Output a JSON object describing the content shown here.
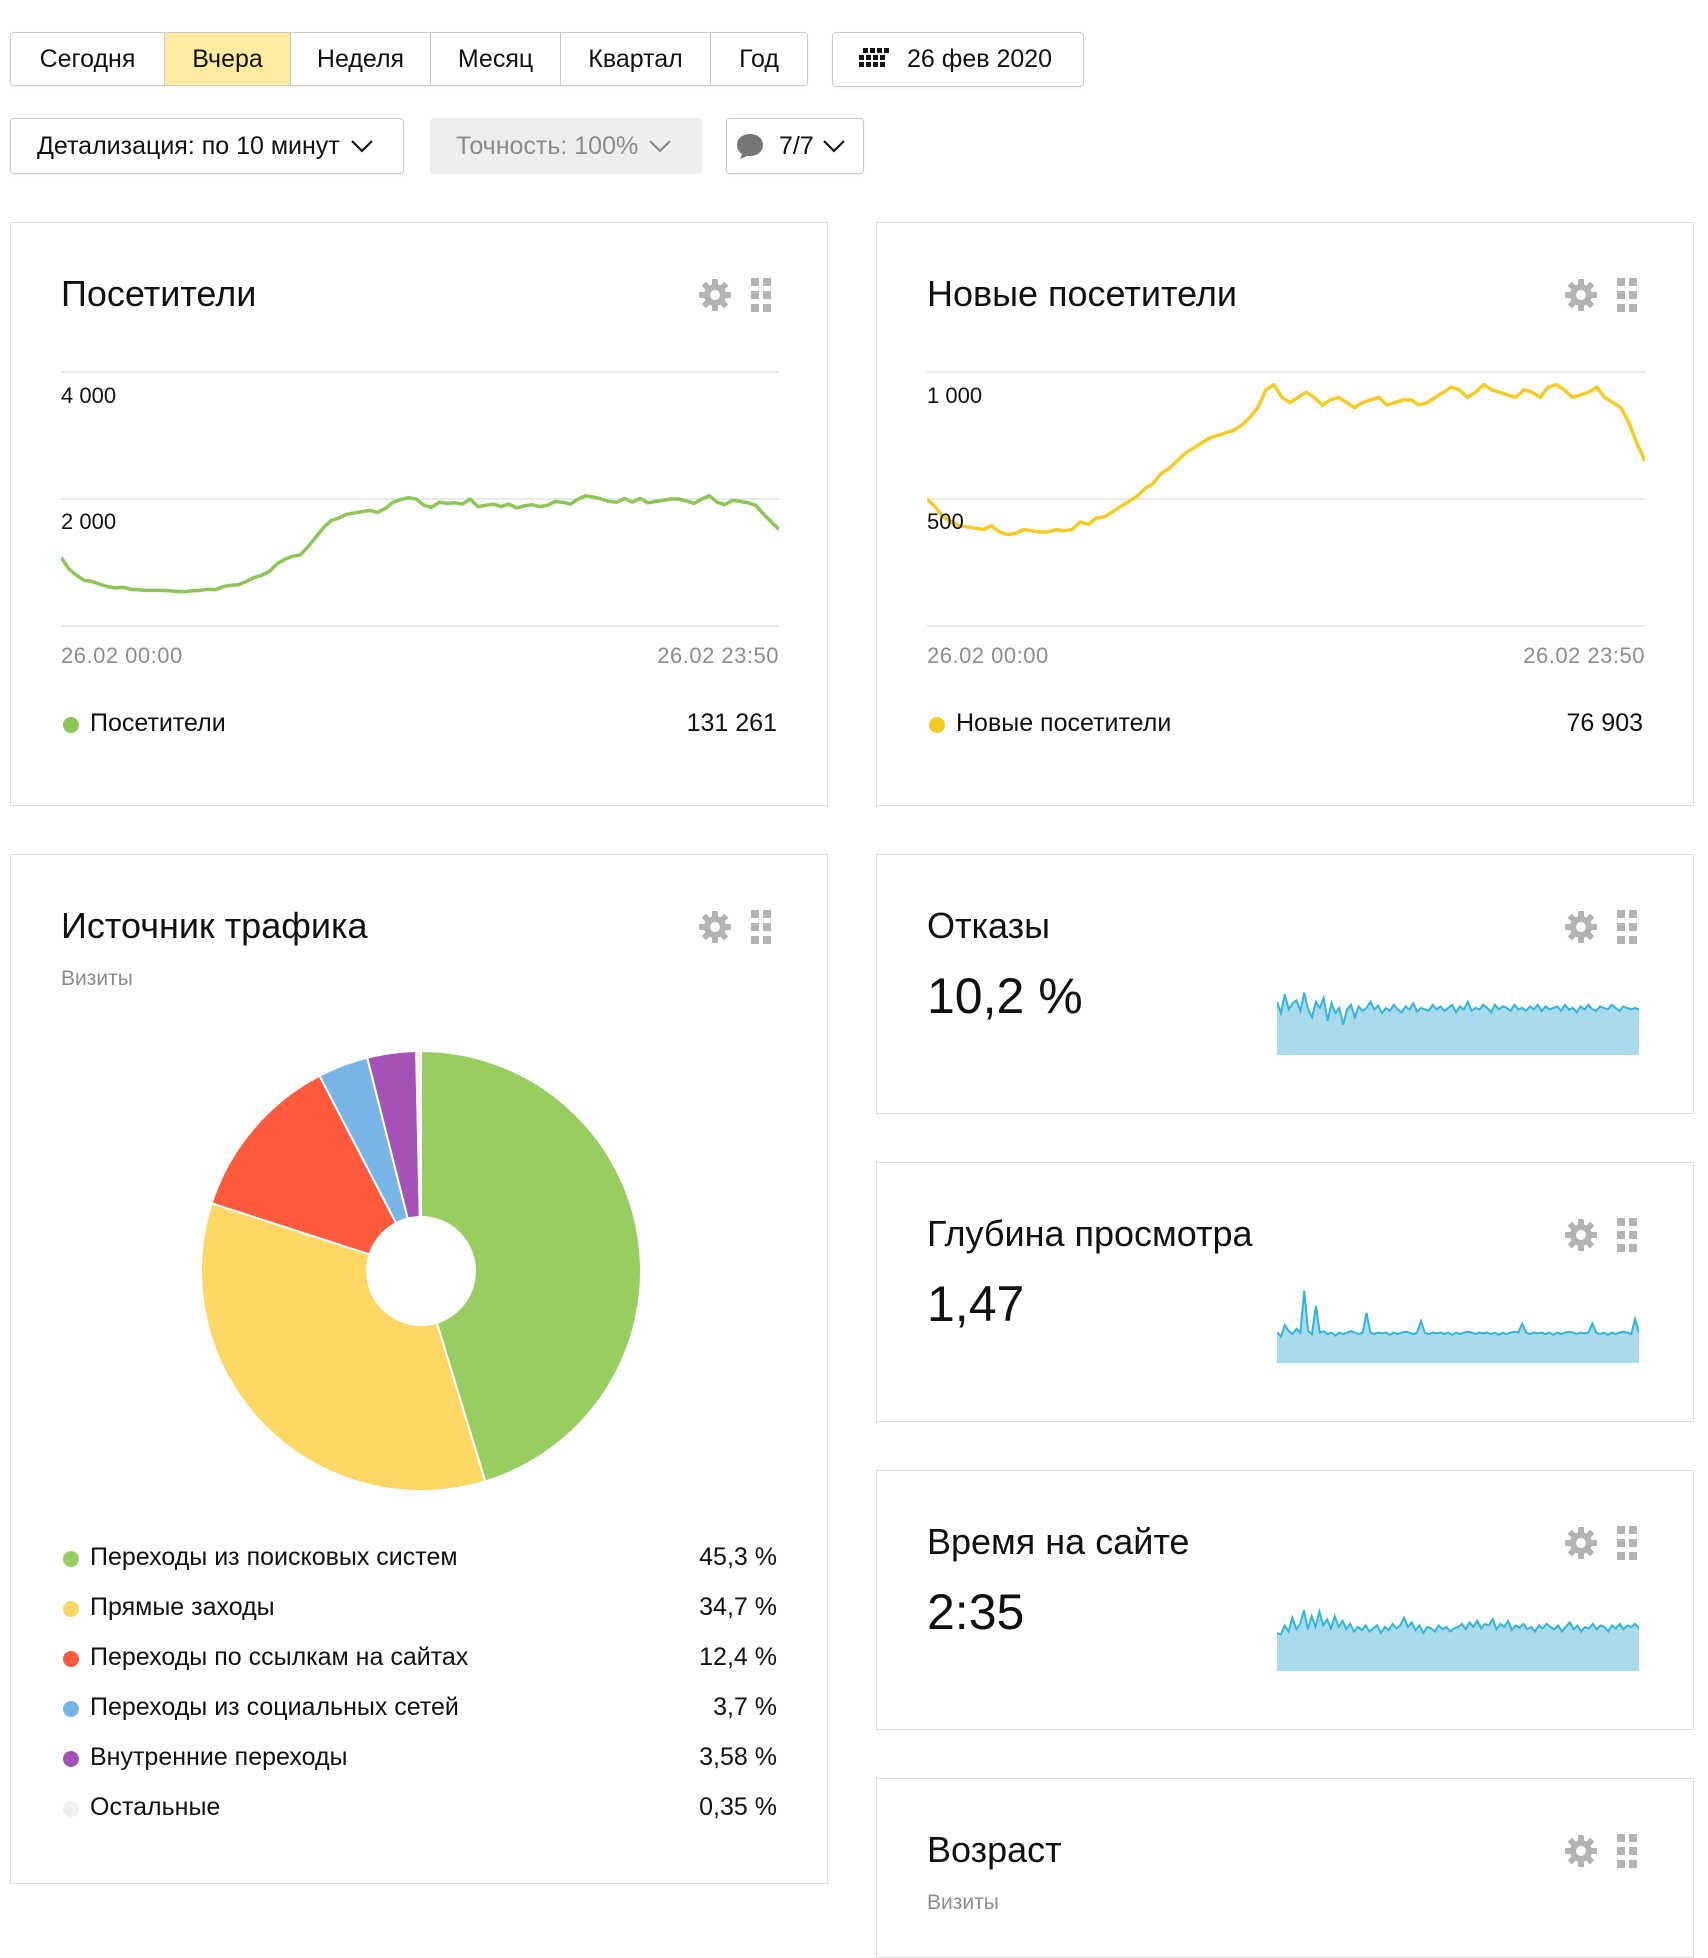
{
  "toolbar": {
    "periods": [
      "Сегодня",
      "Вчера",
      "Неделя",
      "Месяц",
      "Квартал",
      "Год"
    ],
    "active_period": "Вчера",
    "date_label": "26 фев 2020",
    "detail_label": "Детализация: по 10 минут",
    "accuracy_label": "Точность: 100%",
    "segments_label": "7/7"
  },
  "colors": {
    "green": "#8dc656",
    "yellow": "#f5cb23",
    "area_fill": "#a9dbec",
    "area_stroke": "#33b3da",
    "active_tab": "#ffeba0"
  },
  "widgets": {
    "visitors": {
      "title": "Посетители",
      "y_ticks": [
        "4 000",
        "2 000"
      ],
      "x_start": "26.02 00:00",
      "x_end": "26.02 23:50",
      "legend_label": "Посетители",
      "legend_value": "131 261"
    },
    "new_visitors": {
      "title": "Новые посетители",
      "y_ticks": [
        "1 000",
        "500"
      ],
      "x_start": "26.02 00:00",
      "x_end": "26.02 23:50",
      "legend_label": "Новые посетители",
      "legend_value": "76 903"
    },
    "traffic": {
      "title": "Источник трафика",
      "subtitle": "Визиты",
      "legend": [
        {
          "label": "Переходы из поисковых систем",
          "value": "45,3 %",
          "color": "#98cd61"
        },
        {
          "label": "Прямые заходы",
          "value": "34,7 %",
          "color": "#fdd864"
        },
        {
          "label": "Переходы по ссылкам на сайтах",
          "value": "12,4 %",
          "color": "#fd5a3e"
        },
        {
          "label": "Переходы из социальных сетей",
          "value": "3,7 %",
          "color": "#79b4e6"
        },
        {
          "label": "Внутренние переходы",
          "value": "3,58 %",
          "color": "#a552b7"
        },
        {
          "label": "Остальные",
          "value": "0,35 %",
          "color": "#efefef"
        }
      ]
    },
    "bounce": {
      "title": "Отказы",
      "value": "10,2 %"
    },
    "depth": {
      "title": "Глубина просмотра",
      "value": "1,47"
    },
    "time": {
      "title": "Время на сайте",
      "value": "2:35"
    },
    "age": {
      "title": "Возраст",
      "subtitle": "Визиты"
    }
  },
  "chart_data": [
    {
      "type": "line",
      "title": "Посетители",
      "xlabel": "",
      "ylabel": "",
      "x_range": [
        "26.02 00:00",
        "26.02 23:50"
      ],
      "ylim": [
        0,
        4000
      ],
      "grid": true,
      "series": [
        {
          "name": "Посетители",
          "color": "#8dc656",
          "values": [
            1080,
            900,
            800,
            720,
            700,
            660,
            620,
            600,
            610,
            580,
            570,
            560,
            560,
            560,
            555,
            545,
            540,
            555,
            560,
            580,
            570,
            620,
            640,
            650,
            700,
            760,
            800,
            860,
            980,
            1050,
            1100,
            1120,
            1250,
            1400,
            1550,
            1660,
            1700,
            1760,
            1780,
            1800,
            1820,
            1790,
            1850,
            1950,
            1990,
            2020,
            2000,
            1900,
            1870,
            1950,
            1930,
            1940,
            1920,
            2000,
            1880,
            1900,
            1920,
            1880,
            1920,
            1860,
            1890,
            1910,
            1880,
            1900,
            1960,
            1950,
            1920,
            2000,
            2050,
            2030,
            2000,
            1960,
            1950,
            2010,
            1950,
            2010,
            1940,
            1960,
            1980,
            2000,
            2000,
            1970,
            1930,
            2000,
            2050,
            1950,
            1910,
            1980,
            1960,
            1940,
            1900,
            1760,
            1640,
            1520
          ]
        }
      ]
    },
    {
      "type": "line",
      "title": "Новые посетители",
      "xlabel": "",
      "ylabel": "",
      "x_range": [
        "26.02 00:00",
        "26.02 23:50"
      ],
      "ylim": [
        0,
        1000
      ],
      "grid": true,
      "series": [
        {
          "name": "Новые посетители",
          "color": "#f5cb23",
          "values": [
            500,
            470,
            430,
            410,
            395,
            390,
            385,
            380,
            395,
            370,
            360,
            365,
            380,
            375,
            370,
            370,
            380,
            375,
            380,
            410,
            400,
            425,
            430,
            450,
            470,
            490,
            510,
            540,
            560,
            600,
            620,
            650,
            680,
            700,
            720,
            740,
            750,
            760,
            770,
            790,
            820,
            860,
            930,
            950,
            900,
            880,
            900,
            920,
            900,
            870,
            890,
            900,
            880,
            860,
            880,
            890,
            900,
            870,
            880,
            890,
            890,
            870,
            880,
            900,
            920,
            940,
            930,
            900,
            920,
            950,
            930,
            920,
            910,
            900,
            930,
            920,
            900,
            940,
            950,
            930,
            900,
            910,
            920,
            940,
            900,
            880,
            860,
            800,
            720,
            650
          ]
        }
      ]
    },
    {
      "type": "pie",
      "title": "Источник трафика",
      "categories": [
        "Переходы из поисковых систем",
        "Прямые заходы",
        "Переходы по ссылкам на сайтах",
        "Переходы из социальных сетей",
        "Внутренние переходы",
        "Остальные"
      ],
      "values": [
        45.3,
        34.7,
        12.4,
        3.7,
        3.58,
        0.35
      ],
      "colors": [
        "#98cd61",
        "#fdd864",
        "#fd5a3e",
        "#79b4e6",
        "#a552b7",
        "#efefef"
      ]
    },
    {
      "type": "area",
      "title": "Отказы",
      "ylim": [
        0,
        1
      ],
      "series": [
        {
          "values": [
            0.7,
            0.55,
            0.8,
            0.6,
            0.68,
            0.72,
            0.58,
            0.82,
            0.6,
            0.5,
            0.7,
            0.62,
            0.75,
            0.45,
            0.68,
            0.55,
            0.62,
            0.4,
            0.6,
            0.66,
            0.5,
            0.64,
            0.58,
            0.62,
            0.7,
            0.6,
            0.65,
            0.55,
            0.62,
            0.58,
            0.66,
            0.6,
            0.56,
            0.64,
            0.6,
            0.68,
            0.57,
            0.62,
            0.6,
            0.58,
            0.66,
            0.6,
            0.64,
            0.58,
            0.62,
            0.66,
            0.56,
            0.64,
            0.6,
            0.7,
            0.58,
            0.62,
            0.6,
            0.66,
            0.62,
            0.56,
            0.66,
            0.6,
            0.64,
            0.62,
            0.58,
            0.66,
            0.6,
            0.62,
            0.58,
            0.64,
            0.6,
            0.66,
            0.58,
            0.64,
            0.6,
            0.62,
            0.64,
            0.58,
            0.66,
            0.6,
            0.62,
            0.56,
            0.64,
            0.6,
            0.66,
            0.6,
            0.58,
            0.64,
            0.62,
            0.6,
            0.66,
            0.62,
            0.58,
            0.64,
            0.62,
            0.6,
            0.62,
            0.6
          ]
        }
      ]
    },
    {
      "type": "area",
      "title": "Глубина просмотра",
      "ylim": [
        0,
        1
      ],
      "series": [
        {
          "values": [
            0.4,
            0.35,
            0.5,
            0.42,
            0.38,
            0.45,
            0.4,
            0.95,
            0.42,
            0.38,
            0.75,
            0.4,
            0.42,
            0.38,
            0.4,
            0.36,
            0.4,
            0.38,
            0.4,
            0.42,
            0.4,
            0.38,
            0.4,
            0.66,
            0.4,
            0.38,
            0.4,
            0.39,
            0.4,
            0.37,
            0.4,
            0.38,
            0.4,
            0.41,
            0.4,
            0.38,
            0.4,
            0.55,
            0.4,
            0.38,
            0.4,
            0.39,
            0.4,
            0.38,
            0.4,
            0.37,
            0.4,
            0.38,
            0.4,
            0.41,
            0.4,
            0.38,
            0.4,
            0.39,
            0.4,
            0.38,
            0.4,
            0.37,
            0.4,
            0.38,
            0.4,
            0.41,
            0.4,
            0.52,
            0.4,
            0.38,
            0.4,
            0.39,
            0.4,
            0.38,
            0.4,
            0.37,
            0.4,
            0.38,
            0.4,
            0.41,
            0.4,
            0.38,
            0.4,
            0.39,
            0.4,
            0.52,
            0.4,
            0.38,
            0.4,
            0.37,
            0.4,
            0.38,
            0.4,
            0.41,
            0.4,
            0.38,
            0.58,
            0.4
          ]
        }
      ]
    },
    {
      "type": "area",
      "title": "Время на сайте",
      "ylim": [
        0,
        1
      ],
      "series": [
        {
          "values": [
            0.5,
            0.48,
            0.6,
            0.52,
            0.7,
            0.55,
            0.62,
            0.8,
            0.55,
            0.72,
            0.58,
            0.78,
            0.6,
            0.68,
            0.56,
            0.72,
            0.58,
            0.66,
            0.55,
            0.62,
            0.52,
            0.58,
            0.54,
            0.6,
            0.52,
            0.56,
            0.6,
            0.5,
            0.58,
            0.54,
            0.62,
            0.56,
            0.6,
            0.7,
            0.58,
            0.64,
            0.54,
            0.6,
            0.5,
            0.58,
            0.56,
            0.52,
            0.6,
            0.55,
            0.58,
            0.52,
            0.56,
            0.58,
            0.62,
            0.55,
            0.64,
            0.58,
            0.66,
            0.56,
            0.62,
            0.6,
            0.68,
            0.55,
            0.62,
            0.58,
            0.66,
            0.54,
            0.6,
            0.57,
            0.62,
            0.55,
            0.58,
            0.52,
            0.6,
            0.56,
            0.62,
            0.58,
            0.55,
            0.6,
            0.52,
            0.58,
            0.64,
            0.55,
            0.6,
            0.52,
            0.58,
            0.56,
            0.62,
            0.55,
            0.6,
            0.58,
            0.52,
            0.6,
            0.56,
            0.62,
            0.55,
            0.6,
            0.58,
            0.62,
            0.56
          ]
        }
      ]
    }
  ]
}
